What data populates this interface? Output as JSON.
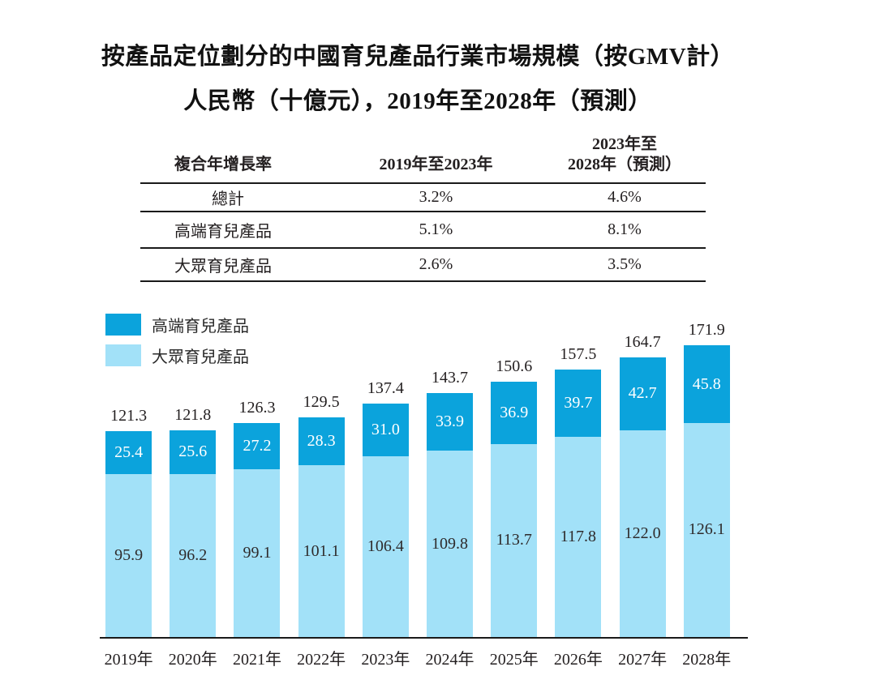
{
  "title": {
    "line1": "按產品定位劃分的中國育兒產品行業市場規模（按GMV計）",
    "line2": "人民幣（十億元），2019年至2028年（預測）"
  },
  "cagr_table": {
    "header": {
      "col1": "複合年增長率",
      "col2": "2019年至2023年",
      "col3_line1": "2023年至",
      "col3_line2": "2028年（預測）"
    },
    "rows": [
      {
        "label": "總計",
        "v1": "3.2%",
        "v2": "4.6%"
      },
      {
        "label": "高端育兒產品",
        "v1": "5.1%",
        "v2": "8.1%"
      },
      {
        "label": "大眾育兒產品",
        "v1": "2.6%",
        "v2": "3.5%"
      }
    ]
  },
  "legend": [
    {
      "label": "高端育兒產品",
      "color": "#0BA3DC"
    },
    {
      "label": "大眾育兒產品",
      "color": "#A2E1F8"
    }
  ],
  "colors": {
    "premium": "#0BA3DC",
    "mass": "#A2E1F8",
    "axis_line": "#1a1a1a",
    "text": "#231f20"
  },
  "chart_data": {
    "type": "bar",
    "stacked": true,
    "title": "按產品定位劃分的中國育兒產品行業市場規模（按GMV計）",
    "subtitle": "人民幣（十億元），2019年至2028年（預測）",
    "unit": "人民幣十億元",
    "categories": [
      "2019年",
      "2020年",
      "2021年",
      "2022年",
      "2023年",
      "2024年",
      "2025年",
      "2026年",
      "2027年",
      "2028年"
    ],
    "series": [
      {
        "name": "高端育兒產品",
        "color": "#0BA3DC",
        "values": [
          25.4,
          25.6,
          27.2,
          28.3,
          31.0,
          33.9,
          36.9,
          39.7,
          42.7,
          45.8
        ]
      },
      {
        "name": "大眾育兒產品",
        "color": "#A2E1F8",
        "values": [
          95.9,
          96.2,
          99.1,
          101.1,
          106.4,
          109.8,
          113.7,
          117.8,
          122.0,
          126.1
        ]
      }
    ],
    "totals": [
      121.3,
      121.8,
      126.3,
      129.5,
      137.4,
      143.7,
      150.6,
      157.5,
      164.7,
      171.9
    ],
    "xlabel": "",
    "ylabel": "",
    "ylim": [
      0,
      180
    ],
    "grid": false,
    "legend_position": "top-left",
    "value_labels": "totals above bars, segment values inside bars"
  }
}
